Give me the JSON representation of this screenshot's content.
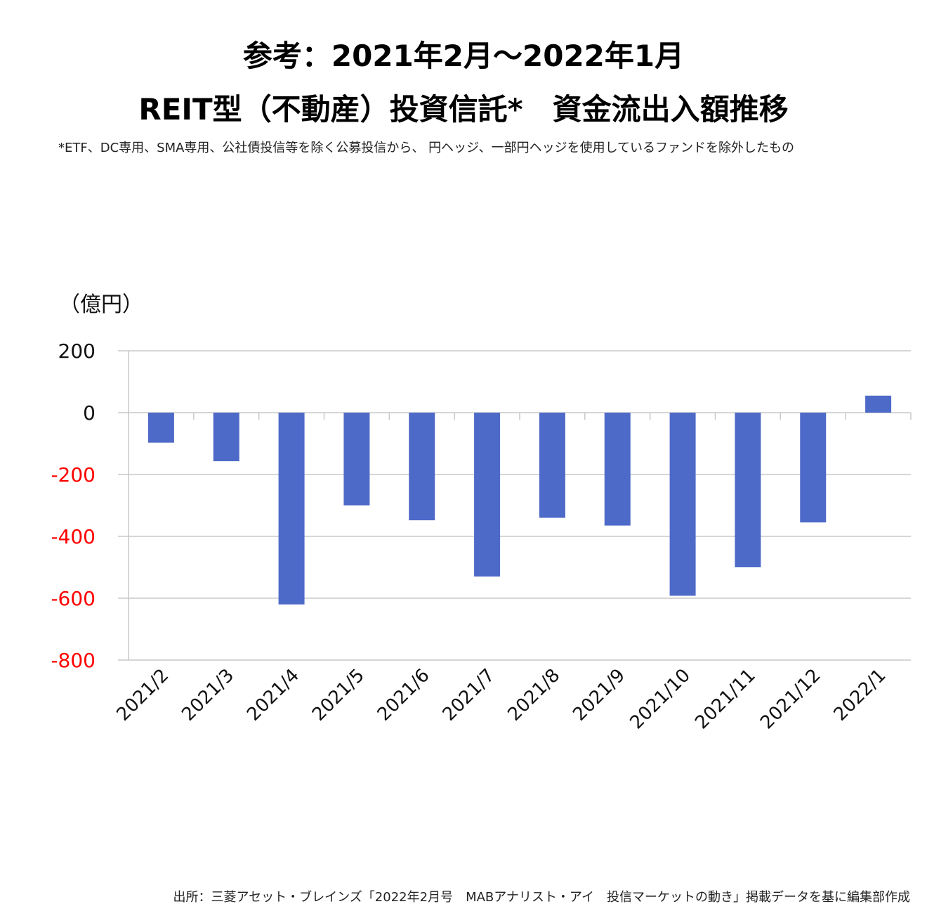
{
  "header": {
    "title_line1": "参考：2021年2月～2022年1月",
    "title_line2": "REIT型（不動産）投資信託*　資金流出入額推移",
    "note": "*ETF、DC専用、SMA専用、公社債投信等を除く公募投信から、 円ヘッジ、一部円ヘッジを使用しているファンドを除外したもの"
  },
  "footer": {
    "source": "出所：三菱アセット・ブレインズ「2022年2月号　MABアナリスト・アイ　投信マーケットの動き」掲載データを基に編集部作成"
  },
  "chart_data": {
    "type": "bar",
    "unit_label": "（億円）",
    "categories": [
      "2021/2",
      "2021/3",
      "2021/4",
      "2021/5",
      "2021/6",
      "2021/7",
      "2021/8",
      "2021/9",
      "2021/10",
      "2021/11",
      "2021/12",
      "2022/1"
    ],
    "values": [
      -97,
      -157,
      -620,
      -300,
      -348,
      -530,
      -340,
      -365,
      -592,
      -500,
      -355,
      55
    ],
    "ylim": [
      -800,
      200
    ],
    "yticks": [
      "200",
      "0",
      "-200",
      "-400",
      "-600",
      "-800"
    ],
    "grid": true,
    "colors": {
      "bar": "#4e6ac8",
      "negative_tick": "#ff0000",
      "positive_tick": "#111111",
      "grid": "#c8c8c8"
    }
  }
}
